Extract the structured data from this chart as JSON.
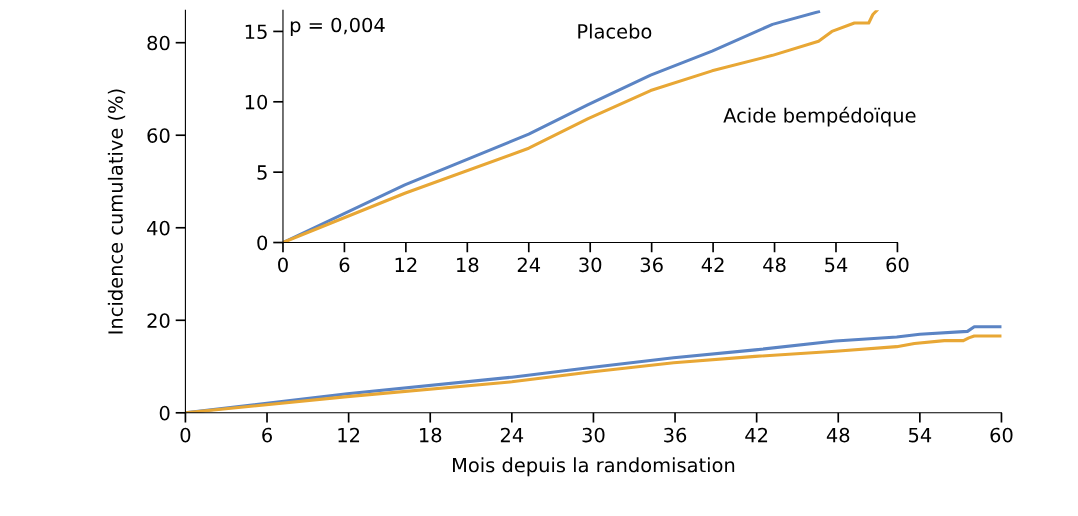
{
  "chart_data": [
    {
      "type": "line",
      "ylabel": "Incidence cumulative (%)",
      "xlabel": "Mois depuis la randomisation",
      "xlim": [
        0,
        60
      ],
      "xticks": [
        0,
        6,
        12,
        18,
        24,
        30,
        36,
        42,
        48,
        54,
        60
      ],
      "ylim": [
        0,
        87
      ],
      "yticks": [
        0,
        20,
        40,
        60,
        80
      ],
      "grid": false,
      "legend": false,
      "series": [
        {
          "color": "#5b84c4",
          "x": [
            0,
            11.9,
            24,
            29.8,
            35.9,
            41.9,
            47.8,
            52.3,
            54,
            57.5,
            58,
            60
          ],
          "values": [
            0,
            4.1,
            7.7,
            9.8,
            11.9,
            13.6,
            15.5,
            16.4,
            17.0,
            17.6,
            18.6,
            18.6
          ]
        },
        {
          "color": "#e8a735",
          "x": [
            0,
            11.9,
            24,
            29.8,
            35.9,
            41.9,
            47.8,
            52.3,
            53.6,
            55.8,
            57.2,
            57.6,
            58,
            60
          ],
          "values": [
            0,
            3.5,
            6.7,
            8.8,
            10.8,
            12.2,
            13.3,
            14.3,
            15.0,
            15.6,
            15.6,
            16.2,
            16.6,
            16.6
          ]
        }
      ]
    },
    {
      "type": "line",
      "annotations": [
        "p = 0,004"
      ],
      "xlim": [
        0,
        60
      ],
      "xticks": [
        0,
        6,
        12,
        18,
        24,
        30,
        36,
        42,
        48,
        54,
        60
      ],
      "ylim": [
        0,
        16.5
      ],
      "yticks": [
        0,
        5,
        10,
        15
      ],
      "grid": false,
      "legend": false,
      "series": [
        {
          "name": "Placebo",
          "color": "#5b84c4",
          "x": [
            0,
            11.9,
            24,
            29.8,
            35.9,
            41.9,
            47.8,
            52.3
          ],
          "values": [
            0,
            4.1,
            7.7,
            9.8,
            11.9,
            13.6,
            15.5,
            16.4
          ]
        },
        {
          "name": "Acide bempédoïque",
          "color": "#e8a735",
          "x": [
            0,
            11.9,
            24,
            29.8,
            35.9,
            41.9,
            47.8,
            52.3,
            53.6,
            55.8,
            57.2,
            57.6,
            58
          ],
          "values": [
            0,
            3.5,
            6.7,
            8.8,
            10.8,
            12.2,
            13.3,
            14.3,
            15.0,
            15.6,
            15.6,
            16.2,
            16.5
          ]
        }
      ]
    }
  ]
}
